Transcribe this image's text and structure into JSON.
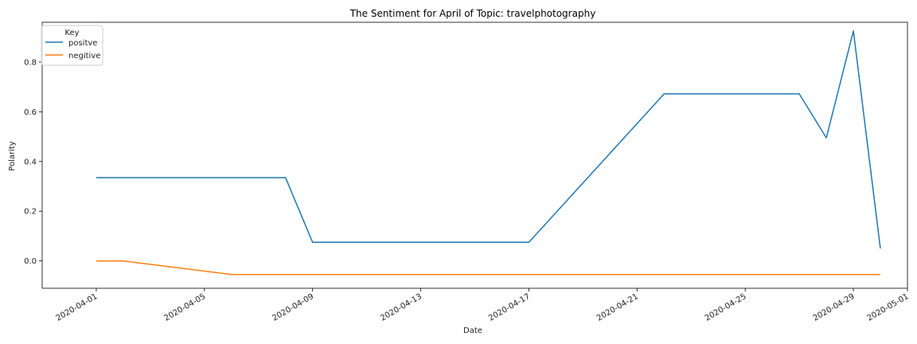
{
  "chart_data": {
    "type": "line",
    "title": "The Sentiment for April of Topic: travelphotography",
    "xlabel": "Date",
    "ylabel": "Polarity",
    "xlim": [
      "2020-03-30",
      "2020-05-01"
    ],
    "ylim": [
      -0.11,
      0.96
    ],
    "x_ticks": [
      "2020-04-01",
      "2020-04-05",
      "2020-04-09",
      "2020-04-13",
      "2020-04-17",
      "2020-04-21",
      "2020-04-25",
      "2020-04-29",
      "2020-05-01"
    ],
    "y_ticks": [
      "0.0",
      "0.2",
      "0.4",
      "0.6",
      "0.8"
    ],
    "y_tick_values": [
      0.0,
      0.2,
      0.4,
      0.6,
      0.8
    ],
    "grid": false,
    "legend": {
      "title": "Key",
      "position": "top-left"
    },
    "series": [
      {
        "name": "positve",
        "color": "#1f77b4",
        "x": [
          "2020-04-01",
          "2020-04-08",
          "2020-04-09",
          "2020-04-17",
          "2020-04-22",
          "2020-04-27",
          "2020-04-28",
          "2020-04-29",
          "2020-04-30"
        ],
        "values": [
          0.335,
          0.335,
          0.075,
          0.075,
          0.672,
          0.672,
          0.495,
          0.925,
          0.05
        ]
      },
      {
        "name": "negitive",
        "color": "#ff7f0e",
        "x": [
          "2020-04-01",
          "2020-04-02",
          "2020-04-06",
          "2020-04-30"
        ],
        "values": [
          0.0,
          0.0,
          -0.055,
          -0.055
        ]
      }
    ]
  }
}
